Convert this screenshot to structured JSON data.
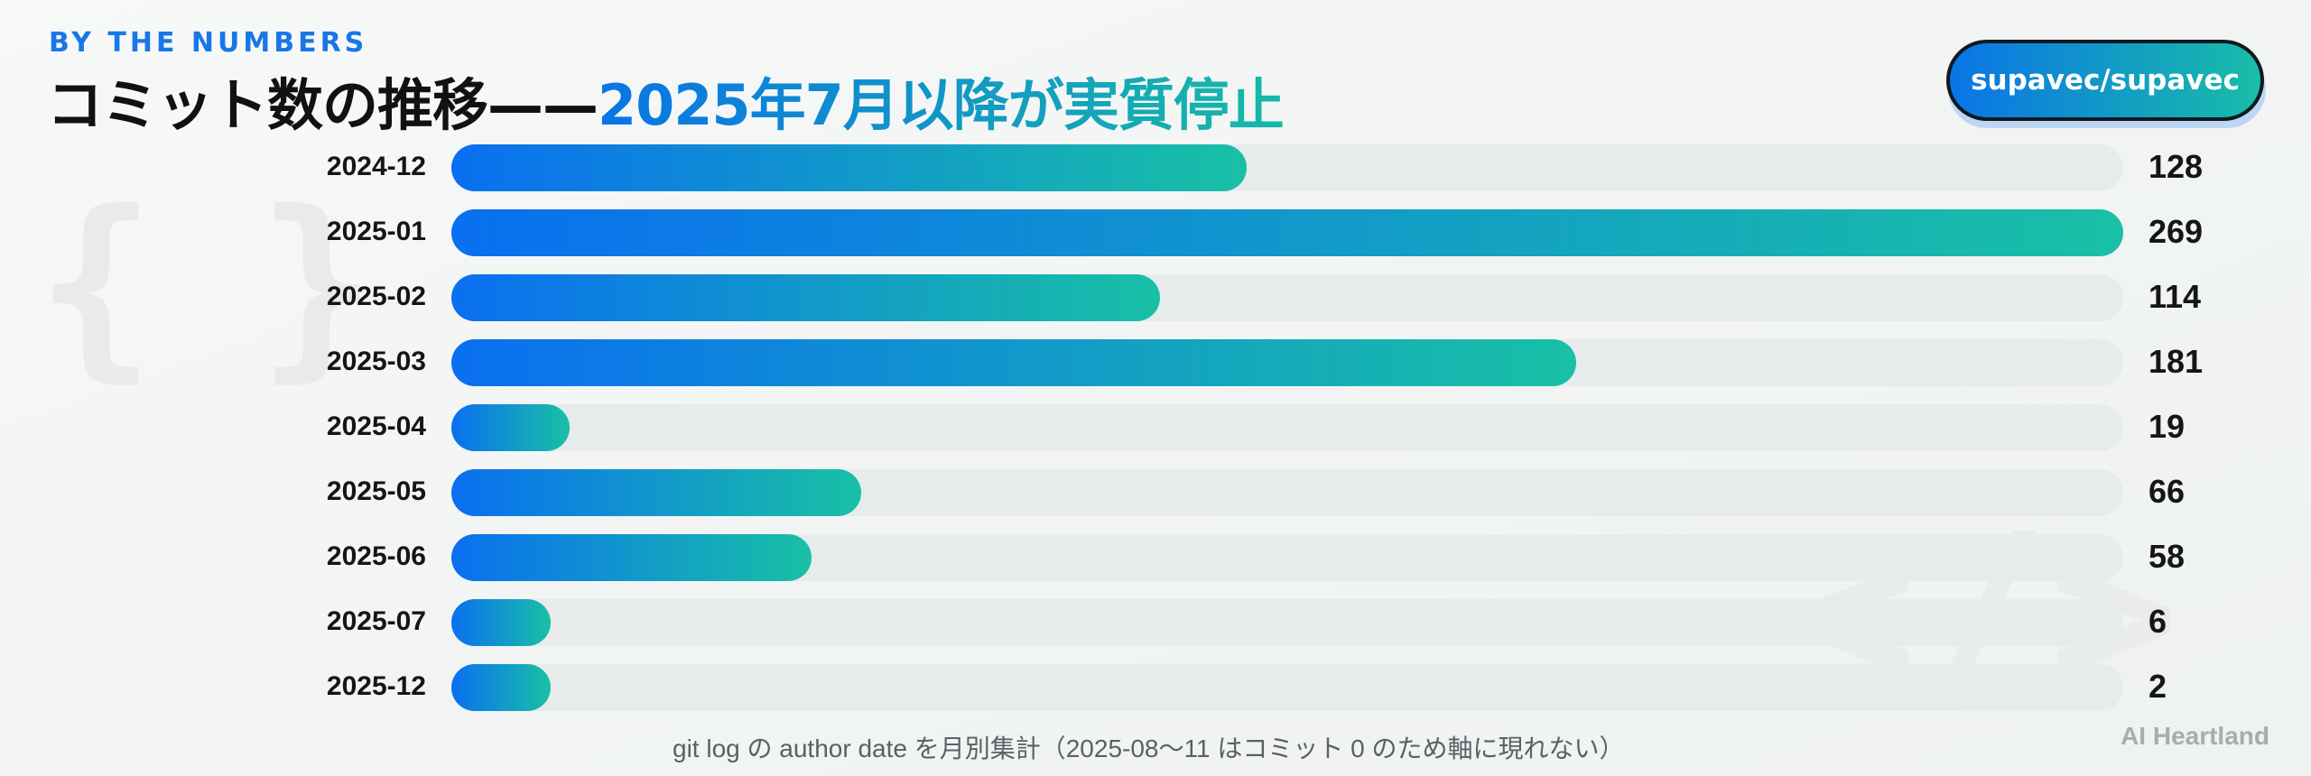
{
  "eyebrow": "BY THE NUMBERS",
  "title": {
    "main": "コミット数の推移——",
    "accent": "2025年7月以降が実質停止"
  },
  "repo_badge": "supavec/supavec",
  "footnote": "git log の author date を月別集計（2025-08〜11 はコミット 0 のため軸に現れない）",
  "brand": "AI Heartland",
  "decorations": {
    "braces": "{ }",
    "code": "</>"
  },
  "colors": {
    "accent_start": "#0a74e6",
    "accent_end": "#19c0a6",
    "track": "#e8ebec",
    "eyebrow": "#1877e8"
  },
  "chart_data": {
    "type": "bar",
    "orientation": "horizontal",
    "categories": [
      "2024-12",
      "2025-01",
      "2025-02",
      "2025-03",
      "2025-04",
      "2025-05",
      "2025-06",
      "2025-07",
      "2025-12"
    ],
    "values": [
      128,
      269,
      114,
      181,
      19,
      66,
      58,
      6,
      2
    ],
    "xlim": [
      0,
      269
    ],
    "grid": false,
    "legend": "none",
    "data_labels": true
  }
}
